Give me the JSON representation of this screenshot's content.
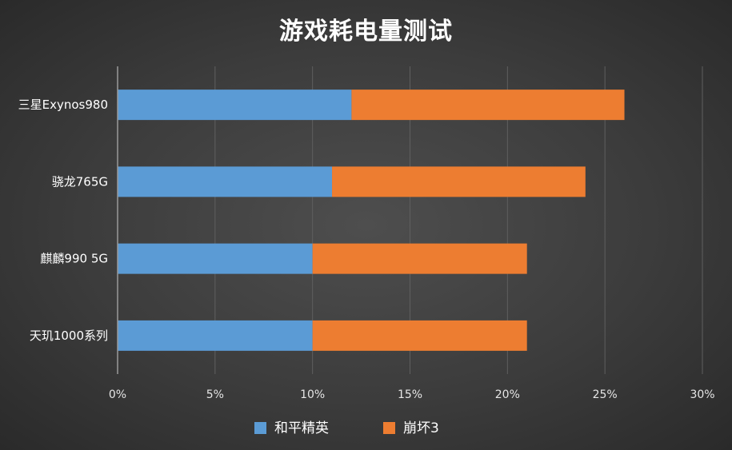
{
  "chart_data": {
    "type": "bar",
    "orientation": "horizontal",
    "stacked": true,
    "title": "游戏耗电量测试",
    "categories": [
      "三星Exynos980",
      "骁龙765G",
      "麒麟990 5G",
      "天玑1000系列"
    ],
    "series": [
      {
        "name": "和平精英",
        "values": [
          12,
          11,
          10,
          10
        ],
        "color": "#5b9bd5"
      },
      {
        "name": "崩坏3",
        "values": [
          14,
          13,
          11,
          11
        ],
        "color": "#ed7d31"
      }
    ],
    "xaxis": {
      "ticks": [
        0,
        5,
        10,
        15,
        20,
        25,
        30
      ],
      "tick_labels": [
        "0%",
        "5%",
        "10%",
        "15%",
        "20%",
        "25%",
        "30%"
      ],
      "xlim": [
        0,
        30
      ]
    },
    "xlabel": "",
    "ylabel": "",
    "grid": "vertical",
    "legend_position": "bottom"
  }
}
